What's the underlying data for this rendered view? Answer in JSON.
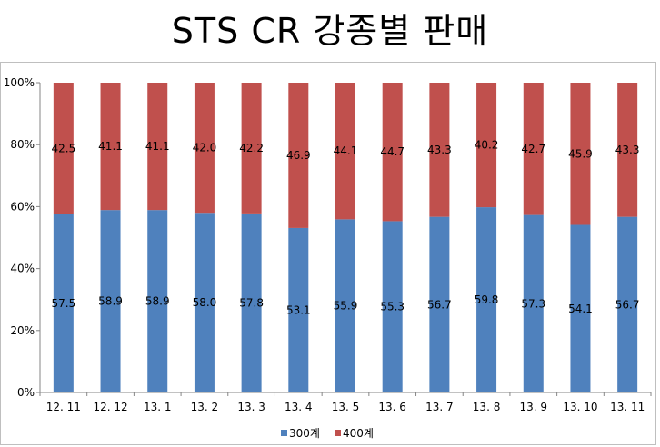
{
  "title": "STS CR 강종별 판매",
  "chart_data": {
    "type": "bar",
    "stacked": true,
    "percent": true,
    "categories": [
      "12. 11",
      "12. 12",
      "13. 1",
      "13. 2",
      "13. 3",
      "13. 4",
      "13. 5",
      "13. 6",
      "13. 7",
      "13. 8",
      "13. 9",
      "13. 10",
      "13. 11"
    ],
    "series": [
      {
        "name": "300계",
        "color": "#4f81bd",
        "values": [
          57.5,
          58.9,
          58.9,
          58.0,
          57.8,
          53.1,
          55.9,
          55.3,
          56.7,
          59.8,
          57.3,
          54.1,
          56.7
        ]
      },
      {
        "name": "400계",
        "color": "#c0504d",
        "values": [
          42.5,
          41.1,
          41.1,
          42.0,
          42.2,
          46.9,
          44.1,
          44.7,
          43.3,
          40.2,
          42.7,
          45.9,
          43.3
        ]
      }
    ],
    "value_labels": {
      "300계": [
        "57.5",
        "58.9",
        "58.9",
        "58.0",
        "57.8",
        "53.1",
        "55.9",
        "55.3",
        "56.7",
        "59.8",
        "57.3",
        "54.1",
        "56.7"
      ],
      "400계": [
        "42.5",
        "41.1",
        "41.1",
        "42.0",
        "42.2",
        "46.9",
        "44.1",
        "44.7",
        "43.3",
        "40.2",
        "42.7",
        "45.9",
        "43.3"
      ]
    },
    "yticks": [
      "0%",
      "20%",
      "40%",
      "60%",
      "80%",
      "100%"
    ],
    "ylim": [
      0,
      100
    ],
    "xlabel": "",
    "ylabel": "",
    "grid": false,
    "legend_position": "bottom"
  }
}
